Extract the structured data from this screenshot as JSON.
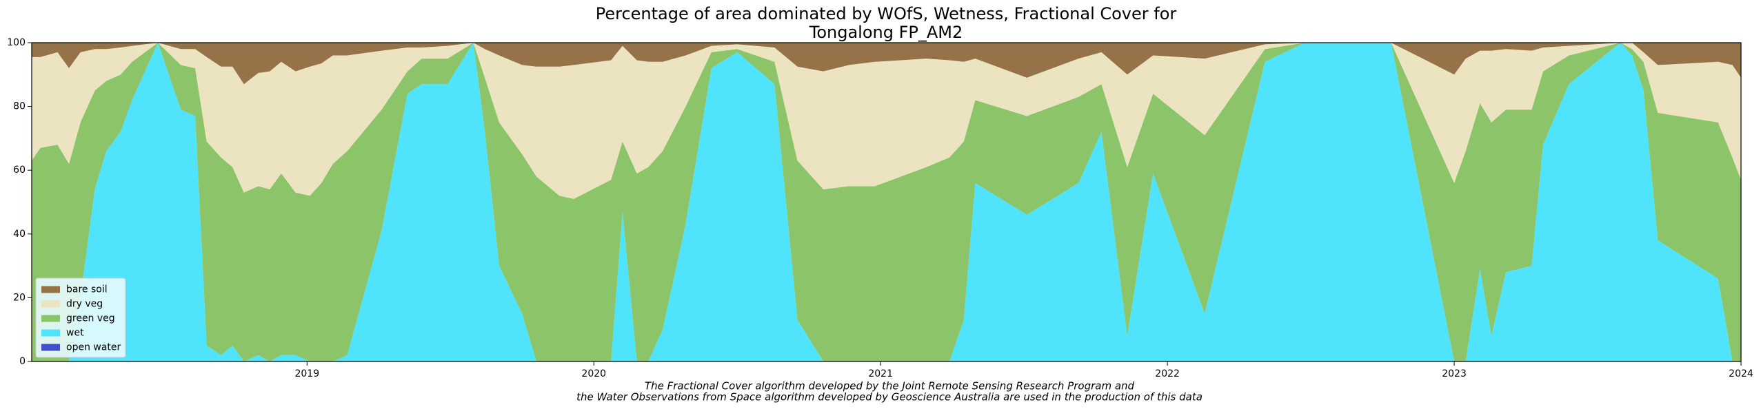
{
  "chart_data": {
    "type": "stacked_area",
    "title": [
      "Percentage of area dominated by WOfS, Wetness, Fractional Cover for",
      "Tongalong FP_AM2"
    ],
    "footnote": [
      "The Fractional Cover algorithm developed by the Joint Remote Sensing Research Program and",
      "the Water Observations from Space algorithm developed by Geoscience Australia are used in the production of this data"
    ],
    "x": [
      2018.04,
      2018.07,
      2018.13,
      2018.17,
      2018.21,
      2018.26,
      2018.3,
      2018.35,
      2018.39,
      2018.48,
      2018.56,
      2018.61,
      2018.65,
      2018.7,
      2018.74,
      2018.78,
      2018.83,
      2018.87,
      2018.91,
      2018.96,
      2019.01,
      2019.05,
      2019.09,
      2019.14,
      2019.26,
      2019.35,
      2019.4,
      2019.49,
      2019.58,
      2019.62,
      2019.67,
      2019.75,
      2019.8,
      2019.88,
      2019.93,
      2020.06,
      2020.1,
      2020.15,
      2020.19,
      2020.24,
      2020.32,
      2020.41,
      2020.5,
      2020.63,
      2020.71,
      2020.8,
      2020.89,
      2020.98,
      2021.07,
      2021.16,
      2021.24,
      2021.29,
      2021.33,
      2021.51,
      2021.69,
      2021.77,
      2021.86,
      2021.95,
      2022.13,
      2022.34,
      2022.48,
      2022.78,
      2023.0,
      2023.04,
      2023.09,
      2023.13,
      2023.18,
      2023.27,
      2023.31,
      2023.4,
      2023.58,
      2023.62,
      2023.66,
      2023.71,
      2023.92,
      2023.97,
      2024.0
    ],
    "series": [
      {
        "name": "open water",
        "color": "#4050c8",
        "values": [
          0,
          0,
          0,
          0,
          0,
          0,
          0,
          0,
          0,
          0,
          0,
          0,
          0,
          0,
          0,
          0,
          0,
          0,
          0,
          0,
          0,
          0,
          0,
          0,
          0,
          0,
          0,
          0,
          0,
          0,
          0,
          0,
          0,
          0,
          0,
          0,
          0,
          0,
          0,
          0,
          0,
          0,
          0,
          0,
          0,
          0,
          0,
          0,
          0,
          0,
          0,
          0,
          0,
          0,
          0,
          0,
          0,
          0,
          0,
          0,
          0,
          0,
          0,
          0,
          0,
          0,
          0,
          0,
          0,
          0,
          0,
          0,
          0,
          0,
          0,
          0,
          0
        ]
      },
      {
        "name": "wet",
        "color": "#4fe4fc",
        "values": [
          0,
          0,
          0,
          0,
          20,
          54,
          66,
          72,
          82,
          100,
          79,
          77,
          5,
          2,
          5,
          0,
          2,
          0,
          2,
          2,
          0,
          0,
          0,
          2,
          41,
          84,
          87,
          87,
          100,
          72,
          30,
          15,
          0,
          0,
          0,
          0,
          47,
          0,
          0,
          10,
          43,
          92,
          97,
          87,
          13,
          0,
          0,
          0,
          0,
          0,
          0,
          13,
          56,
          46,
          56,
          72,
          8,
          59,
          15,
          94,
          100,
          100,
          0,
          0,
          29,
          8,
          28,
          30,
          68,
          87,
          100,
          96,
          85,
          38,
          26,
          0,
          0
        ]
      },
      {
        "name": "green veg",
        "color": "#8cc46a",
        "values": [
          63,
          67,
          68,
          62,
          55,
          31,
          22,
          18,
          12,
          0,
          14,
          15,
          64,
          62,
          56,
          53,
          53,
          54,
          57,
          51,
          52,
          56,
          62,
          64,
          38,
          7,
          8,
          8,
          0,
          17,
          45,
          50,
          58,
          52,
          51,
          57,
          22,
          59,
          61,
          56,
          37,
          5,
          1,
          7,
          50,
          54,
          55,
          55,
          58,
          61,
          64,
          56,
          26,
          31,
          27,
          15,
          53,
          25,
          56,
          4,
          0,
          0,
          56,
          66,
          52,
          67,
          51,
          49,
          23,
          9,
          0,
          2,
          9,
          40,
          49,
          64,
          57
        ]
      },
      {
        "name": "dry veg",
        "color": "#ece4c0",
        "values": [
          32.5,
          28.5,
          29,
          30,
          22,
          13,
          10,
          8.5,
          5,
          0,
          5,
          6,
          26.5,
          28.5,
          31.5,
          34,
          35.5,
          37,
          35,
          38,
          40.5,
          37.5,
          34,
          30,
          18.5,
          7.5,
          3.5,
          4,
          0,
          9,
          21,
          28,
          34.5,
          40.5,
          42,
          37.5,
          30,
          35.5,
          33,
          28,
          16,
          2,
          1.5,
          4.5,
          29.5,
          37,
          38,
          39,
          36.5,
          34,
          30.5,
          25,
          13,
          12,
          12,
          10,
          29,
          12,
          24,
          1.5,
          0,
          0,
          34,
          29,
          16.5,
          22.5,
          19,
          18.5,
          7.5,
          3,
          0,
          2,
          3,
          15,
          19,
          29,
          32
        ]
      },
      {
        "name": "bare soil",
        "color": "#967249",
        "values": [
          4.5,
          4.5,
          3,
          8,
          3,
          2,
          2,
          1.5,
          1,
          0,
          2,
          2,
          4.5,
          7.5,
          7.5,
          13,
          9.5,
          9,
          6,
          9,
          7.5,
          6.5,
          4,
          4,
          2.5,
          1.5,
          1.5,
          1,
          0,
          2,
          4,
          7,
          7.5,
          7.5,
          7,
          5.5,
          1,
          5.5,
          6,
          6,
          4,
          1,
          0.5,
          1.5,
          7.5,
          9,
          7,
          6,
          5.5,
          5,
          5.5,
          6,
          5,
          11,
          5,
          3,
          10,
          4,
          5,
          0.5,
          0,
          0,
          10,
          5,
          2.5,
          2.5,
          2,
          2.5,
          1.5,
          1,
          0,
          0,
          3,
          7,
          6,
          7,
          11
        ]
      }
    ],
    "xlim": [
      2018.04,
      2024
    ],
    "xticks": [
      2019,
      2020,
      2021,
      2022,
      2023,
      2024
    ],
    "ylim": [
      0,
      100
    ],
    "yticks": [
      0,
      20,
      40,
      60,
      80,
      100
    ],
    "legend": "lower left"
  }
}
